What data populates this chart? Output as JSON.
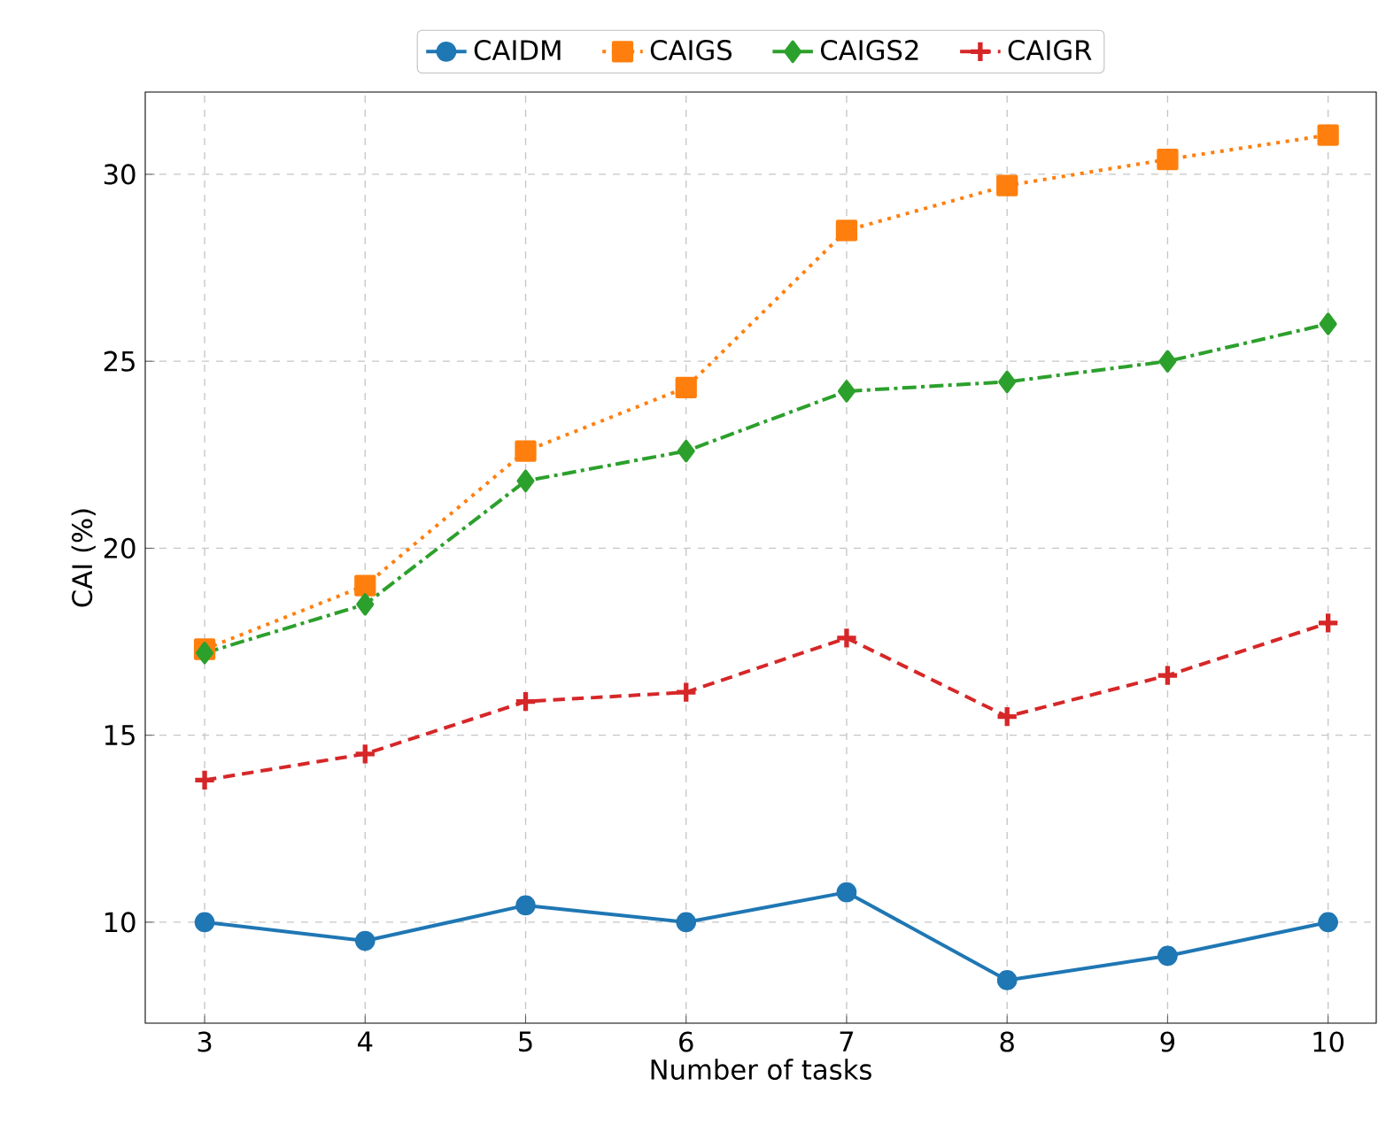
{
  "chart_data": {
    "type": "line",
    "xlabel": "Number of tasks",
    "ylabel": "CAI (%)",
    "x": [
      3,
      4,
      5,
      6,
      7,
      8,
      9,
      10
    ],
    "xlim": [
      2.63,
      10.3
    ],
    "ylim": [
      7.3,
      32.2
    ],
    "xticks": [
      3,
      4,
      5,
      6,
      7,
      8,
      9,
      10
    ],
    "yticks": [
      10,
      15,
      20,
      25,
      30
    ],
    "grid": true,
    "legend": "top",
    "series": [
      {
        "name": "CAIDM",
        "color": "#1f77b4",
        "marker": "circle",
        "line_style": "solid",
        "values": [
          10.0,
          9.5,
          10.45,
          10.0,
          10.8,
          8.45,
          9.1,
          10.0
        ]
      },
      {
        "name": "CAIGS",
        "color": "#ff7f0e",
        "marker": "square",
        "line_style": "dotted",
        "values": [
          17.3,
          19.0,
          22.6,
          24.3,
          28.5,
          29.7,
          30.4,
          31.05
        ]
      },
      {
        "name": "CAIGS2",
        "color": "#2ca02c",
        "marker": "diamond",
        "line_style": "dashdot",
        "values": [
          17.2,
          18.5,
          21.8,
          22.6,
          24.2,
          24.45,
          25.0,
          26.0
        ]
      },
      {
        "name": "CAIGR",
        "color": "#d62728",
        "marker": "cross",
        "line_style": "dashed",
        "values": [
          13.8,
          14.5,
          15.9,
          16.15,
          17.6,
          15.5,
          16.6,
          18.0
        ]
      }
    ]
  }
}
